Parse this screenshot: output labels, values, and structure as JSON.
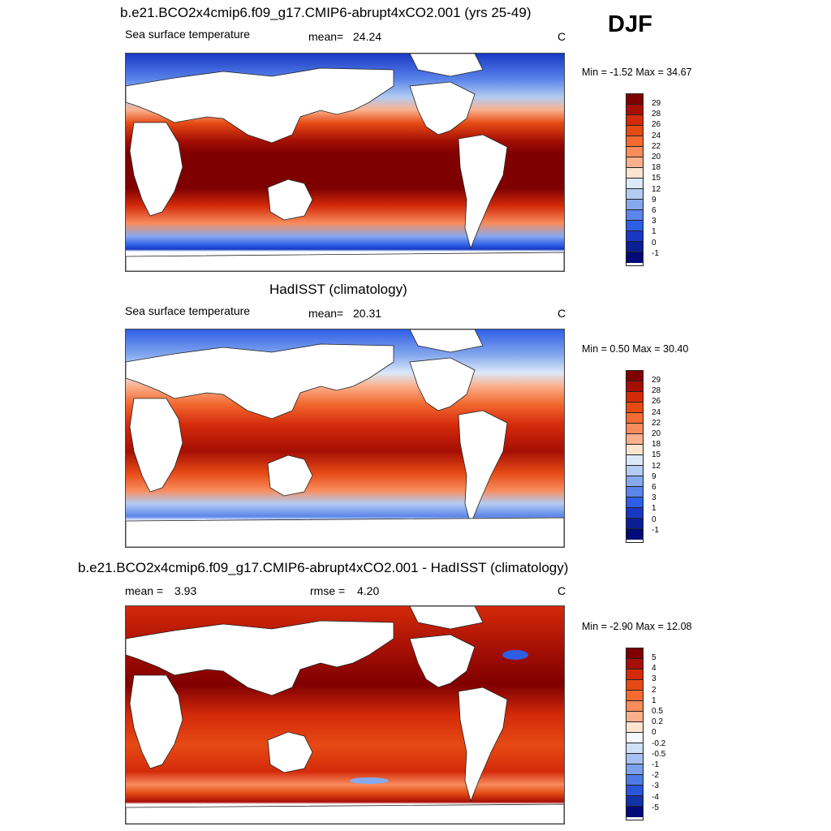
{
  "season": "DJF",
  "units_label": "C",
  "panels": [
    {
      "title": "b.e21.BCO2x4cmip6.f09_g17.CMIP6-abrupt4xCO2.001 (yrs 25-49)",
      "left_label": "Sea surface temperature",
      "stat_label": "mean=",
      "stat_value": "24.24",
      "units": "C",
      "minmax": "Min =  -1.52 Max =  34.67",
      "colorbar_levels": [
        "29",
        "28",
        "26",
        "24",
        "22",
        "20",
        "18",
        "15",
        "12",
        "9",
        "6",
        "3",
        "1",
        "0",
        "-1"
      ]
    },
    {
      "title": "HadISST (climatology)",
      "left_label": "Sea surface temperature",
      "stat_label": "mean=",
      "stat_value": "20.31",
      "units": "C",
      "minmax": "Min =   0.50 Max =  30.40",
      "colorbar_levels": [
        "29",
        "28",
        "26",
        "24",
        "22",
        "20",
        "18",
        "15",
        "12",
        "9",
        "6",
        "3",
        "1",
        "0",
        "-1"
      ]
    },
    {
      "title": "b.e21.BCO2x4cmip6.f09_g17.CMIP6-abrupt4xCO2.001 - HadISST (climatology)",
      "left_label": "mean =",
      "left_value": "3.93",
      "stat_label": "rmse =",
      "stat_value": "4.20",
      "units": "C",
      "minmax": "Min =  -2.90 Max =  12.08",
      "colorbar_levels": [
        "5",
        "4",
        "3",
        "2",
        "1",
        "0.5",
        "0.2",
        "0",
        "-0.2",
        "-0.5",
        "-1",
        "-2",
        "-3",
        "-4",
        "-5"
      ]
    }
  ],
  "colors": {
    "sst_scale": [
      "#7f0000",
      "#a50f05",
      "#d42a0a",
      "#e64a14",
      "#f36a32",
      "#f88c5c",
      "#fbb08c",
      "#fde4cf",
      "#dce9f8",
      "#b3ccf2",
      "#86a9ee",
      "#5b85ea",
      "#2f5ee6",
      "#1838c4",
      "#0a1f94",
      "#000a78"
    ],
    "diff_scale": [
      "#7f0000",
      "#a50f05",
      "#d42a0a",
      "#e64a14",
      "#f36a32",
      "#f88c5c",
      "#fbb08c",
      "#fde4cf",
      "#f5f8ff",
      "#cfe0f8",
      "#a7c1f2",
      "#7ca0ec",
      "#4f7be6",
      "#2a55d8",
      "#1232a8",
      "#000a78"
    ],
    "land": "#ffffff",
    "coastline": "#222222"
  }
}
